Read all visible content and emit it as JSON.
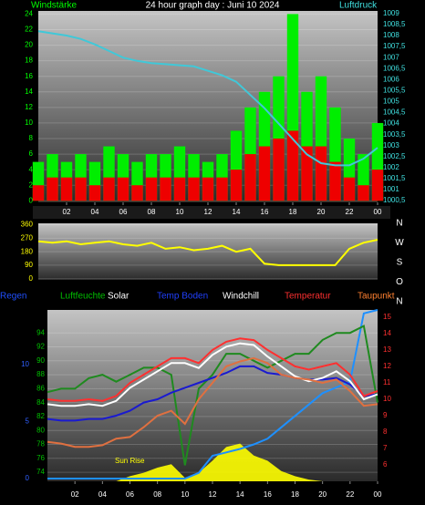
{
  "chart_data": [
    {
      "type": "bar-line",
      "title": "24 hour graph day : Juni 10 2024",
      "y_label": "Windstärke",
      "y_color": "#00ff00",
      "y2_label": "Luftdruck",
      "y2_color": "#40e0e0",
      "x": [
        0,
        1,
        2,
        3,
        4,
        5,
        6,
        7,
        8,
        9,
        10,
        11,
        12,
        13,
        14,
        15,
        16,
        17,
        18,
        19,
        20,
        21,
        22,
        23,
        24
      ],
      "xlim": [
        0,
        24
      ],
      "xticks": [
        {
          "value": 2,
          "label": "02"
        },
        {
          "value": 4,
          "label": "04"
        },
        {
          "value": 6,
          "label": "06"
        },
        {
          "value": 8,
          "label": "08"
        },
        10,
        12,
        14,
        16,
        18,
        20,
        22,
        {
          "value": 24,
          "label": "00"
        }
      ],
      "ylim": [
        -0.2,
        24.4
      ],
      "yticks": [
        0,
        2,
        4,
        6,
        8,
        10,
        12,
        14,
        16,
        18,
        20,
        22,
        24
      ],
      "y2lim": [
        1000.42,
        1009.12
      ],
      "y2ticks": [
        {
          "value": 1000.5,
          "label": "1000,5"
        },
        1001,
        {
          "value": 1001.5,
          "label": "1001,5"
        },
        1002,
        {
          "value": 1002.5,
          "label": "1002,5"
        },
        1003,
        {
          "value": 1003.5,
          "label": "1003,5"
        },
        1004,
        {
          "value": 1004.5,
          "label": "1004,5"
        },
        1005,
        {
          "value": 1005.5,
          "label": "1005,5"
        },
        1006,
        {
          "value": 1006.5,
          "label": "1006,5"
        },
        1007,
        {
          "value": 1007.5,
          "label": "1007,5"
        },
        1008,
        {
          "value": 1008.5,
          "label": "1008,5"
        },
        1009
      ],
      "grid": true,
      "series": [
        {
          "style": "bar",
          "axis": "y",
          "color": "#00ee00",
          "values": [
            5,
            6,
            5,
            6,
            5,
            7,
            6,
            5,
            6,
            6,
            7,
            6,
            5,
            6,
            9,
            12,
            14,
            16,
            24,
            14,
            16,
            12,
            8,
            6,
            10
          ]
        },
        {
          "style": "bar",
          "axis": "y",
          "color": "#ee0000",
          "values": [
            2,
            3,
            3,
            3,
            2,
            3,
            3,
            2,
            3,
            3,
            3,
            3,
            3,
            3,
            4,
            6,
            7,
            8,
            9,
            7,
            7,
            5,
            3,
            2,
            4
          ]
        },
        {
          "style": "line",
          "axis": "y2",
          "color": "#40c8d8",
          "values": [
            1008.2,
            1008.1,
            1008.0,
            1007.85,
            1007.6,
            1007.3,
            1007.0,
            1006.85,
            1006.75,
            1006.7,
            1006.65,
            1006.6,
            1006.4,
            1006.2,
            1005.9,
            1005.3,
            1004.7,
            1004.0,
            1003.3,
            1002.6,
            1002.2,
            1002.1,
            1002.1,
            1002.4,
            1002.9
          ]
        }
      ]
    },
    {
      "type": "line",
      "y_color": "#ffff00",
      "compass_labels": [
        "N",
        "W",
        "S",
        "O",
        "N"
      ],
      "x": [
        0,
        1,
        2,
        3,
        4,
        5,
        6,
        7,
        8,
        9,
        10,
        11,
        12,
        13,
        14,
        15,
        16,
        17,
        18,
        19,
        20,
        21,
        22,
        23,
        24
      ],
      "xlim": [
        0,
        24
      ],
      "ylim": [
        -8,
        370
      ],
      "yticks": [
        0,
        90,
        180,
        270,
        360
      ],
      "grid": true,
      "series": [
        {
          "style": "line",
          "axis": "y",
          "color": "#ffff00",
          "values": [
            250,
            240,
            250,
            230,
            240,
            250,
            230,
            220,
            240,
            200,
            210,
            190,
            200,
            220,
            180,
            200,
            100,
            90,
            90,
            90,
            90,
            90,
            200,
            240,
            260
          ]
        }
      ]
    },
    {
      "type": "multi-line",
      "annotation": "Sun Rise",
      "y_color": "#00c000",
      "y2_color": "#ff3030",
      "y3_color": "#3060ff",
      "x": [
        0,
        1,
        2,
        3,
        4,
        5,
        6,
        7,
        8,
        9,
        10,
        11,
        12,
        13,
        14,
        15,
        16,
        17,
        18,
        19,
        20,
        21,
        22,
        23,
        24
      ],
      "xlim": [
        0,
        24
      ],
      "xticks": [
        {
          "value": 2,
          "label": "02"
        },
        {
          "value": 4,
          "label": "04"
        },
        {
          "value": 6,
          "label": "06"
        },
        {
          "value": 8,
          "label": "08"
        },
        10,
        12,
        14,
        16,
        18,
        20,
        22,
        {
          "value": 24,
          "label": "00"
        }
      ],
      "ylim": [
        72.7,
        97.3
      ],
      "yticks": [
        74,
        76,
        78,
        80,
        82,
        84,
        86,
        88,
        90,
        92,
        94
      ],
      "y2lim": [
        5.0,
        15.44
      ],
      "y2ticks": [
        6,
        7,
        8,
        9,
        10,
        11,
        12,
        13,
        14,
        15
      ],
      "y3lim": [
        -0.24,
        14.8
      ],
      "y3ticks": [
        0,
        5,
        10
      ],
      "y4lim": [
        0,
        100
      ],
      "grid": true,
      "series": [
        {
          "name": "Regen",
          "label_color": "#2050ff",
          "style": "line",
          "axis": "y3",
          "color": "#1e90ff",
          "values": [
            0,
            0,
            0,
            0,
            0,
            0,
            0,
            0,
            0,
            0,
            0,
            0.5,
            2,
            2.3,
            2.6,
            3,
            3.5,
            4.5,
            5.5,
            6.5,
            7.5,
            8,
            8.5,
            14.5,
            14.8
          ]
        },
        {
          "name": "Luftfeuchte",
          "label_color": "#00c000",
          "style": "line",
          "axis": "y",
          "color": "#1f8a1f",
          "values": [
            85.5,
            86,
            86,
            87.5,
            88,
            87,
            88,
            89,
            89,
            88,
            75,
            86,
            88,
            91,
            91,
            90,
            89,
            90,
            91,
            91,
            93,
            94,
            94,
            95,
            84
          ]
        },
        {
          "name": "Solar",
          "label_color": "#ffffff",
          "style": "area",
          "axis": "y4",
          "color": "#ffff00",
          "values": [
            0,
            0,
            0,
            0,
            0,
            0,
            3,
            5,
            8,
            10,
            2,
            5,
            12,
            20,
            22,
            15,
            12,
            6,
            3,
            1,
            0,
            0,
            0,
            0,
            0
          ]
        },
        {
          "name": "Temp Boden",
          "label_color": "#2040ff",
          "style": "line",
          "axis": "y2",
          "color": "#1a1ad0",
          "values": [
            8.8,
            8.7,
            8.7,
            8.8,
            8.8,
            9,
            9.3,
            9.8,
            10,
            10.4,
            10.7,
            11,
            11.3,
            11.6,
            12,
            12,
            11.6,
            11.5,
            11.3,
            11.2,
            11.2,
            11.3,
            10.9,
            10.2,
            10.3
          ]
        },
        {
          "name": "Windchill",
          "label_color": "#ffffff",
          "style": "line",
          "axis": "y2",
          "color": "#ffffff",
          "values": [
            9.7,
            9.6,
            9.6,
            9.7,
            9.6,
            9.9,
            10.7,
            11.2,
            11.7,
            12.2,
            12.2,
            11.9,
            12.7,
            13.2,
            13.4,
            13.3,
            12.6,
            12,
            11.4,
            11.1,
            11.3,
            11.7,
            11.1,
            10,
            10.3
          ]
        },
        {
          "name": "Temperatur",
          "label_color": "#ff3030",
          "style": "line",
          "axis": "y2",
          "color": "#ff3030",
          "values": [
            10,
            9.9,
            9.9,
            10,
            9.9,
            10.2,
            11,
            11.5,
            12,
            12.5,
            12.5,
            12.2,
            13,
            13.5,
            13.7,
            13.6,
            13,
            12.5,
            12,
            11.8,
            12,
            12.2,
            11.5,
            10.2,
            10.5
          ]
        },
        {
          "name": "Taupunkt",
          "label_color": "#ff8030",
          "style": "line",
          "axis": "y2",
          "color": "#e07040",
          "values": [
            7.4,
            7.3,
            7.1,
            7.1,
            7.2,
            7.6,
            7.7,
            8.3,
            9,
            9.3,
            8.5,
            10,
            11,
            12,
            12.3,
            12.5,
            12.2,
            11.5,
            11.3,
            11.2,
            11,
            11.2,
            10.5,
            9.6,
            9.7
          ]
        }
      ]
    }
  ]
}
